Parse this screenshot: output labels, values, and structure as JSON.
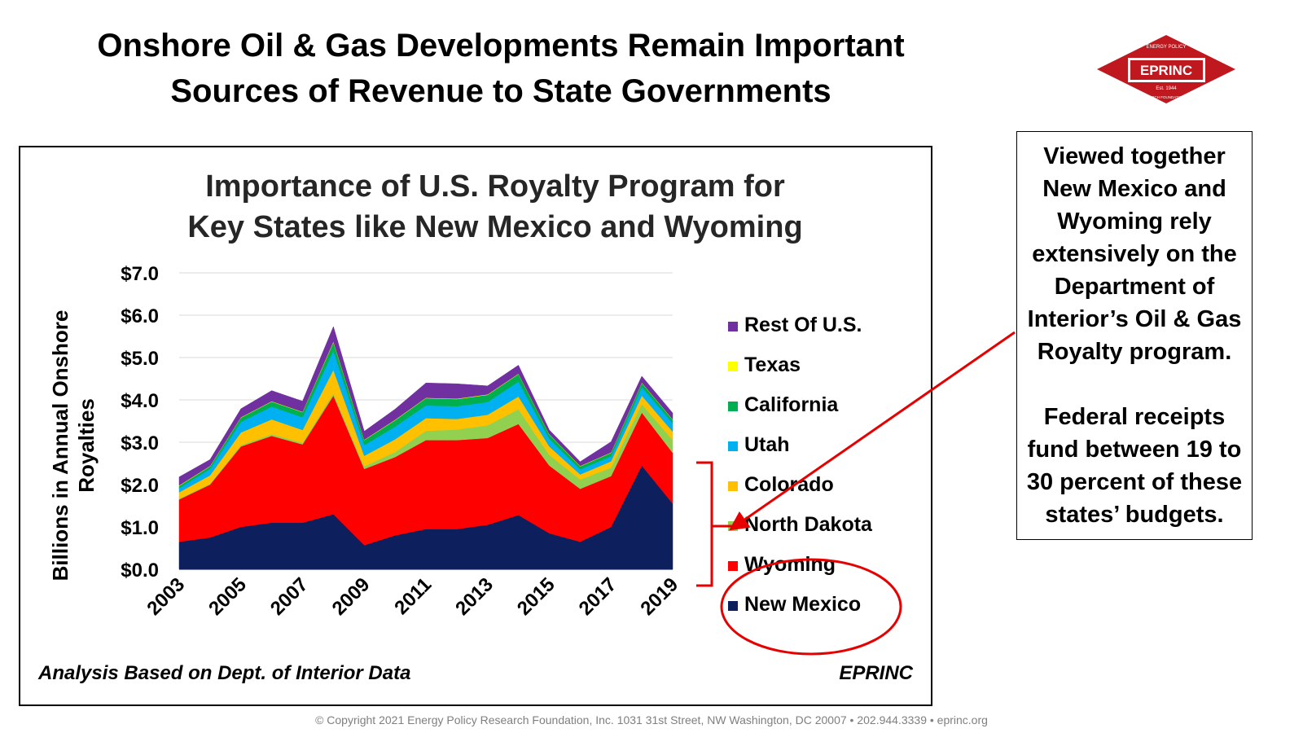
{
  "slide": {
    "title_line1": "Onshore Oil & Gas Developments Remain Important",
    "title_line2": "Sources of Revenue to State Governments",
    "footer": "© Copyright 2021 Energy Policy Research Foundation, Inc. 1031 31st Street, NW Washington, DC 20007 • 202.944.3339 • eprinc.org"
  },
  "logo": {
    "name": "EPRINC",
    "est": "Est. 1944",
    "text_top": "ENERGY POLICY",
    "text_bottom": "RESEARCH FOUNDATION INC.",
    "color": "#c0181f"
  },
  "note": {
    "paragraph1": "Viewed together New Mexico and Wyoming rely extensively on the Department of Interior’s Oil & Gas Royalty program.",
    "paragraph2": "Federal receipts fund between 19 to 30 percent of these states’ budgets."
  },
  "chart_data": {
    "type": "area",
    "stacked": true,
    "title_line1": "Importance of U.S. Royalty Program for",
    "title_line2": "Key States like New Mexico and Wyoming",
    "ylabel_line1": "Billions in Annual Onshore",
    "ylabel_line2": "Royalties",
    "source_note": "Analysis Based on Dept. of Interior Data",
    "brand": "EPRINC",
    "ylim": [
      0,
      7
    ],
    "yticks": [
      "$0.0",
      "$1.0",
      "$2.0",
      "$3.0",
      "$4.0",
      "$5.0",
      "$6.0",
      "$7.0"
    ],
    "ytick_values": [
      0,
      1,
      2,
      3,
      4,
      5,
      6,
      7
    ],
    "xtick_labels": [
      "2003",
      "2005",
      "2007",
      "2009",
      "2011",
      "2013",
      "2015",
      "2017",
      "2019"
    ],
    "x": [
      2003,
      2004,
      2005,
      2006,
      2007,
      2008,
      2009,
      2010,
      2011,
      2012,
      2013,
      2014,
      2015,
      2016,
      2017,
      2018,
      2019
    ],
    "grid": "horizontal",
    "legend_position": "right",
    "series": [
      {
        "name": "New Mexico",
        "color": "#0d1f5c",
        "values": [
          0.65,
          0.75,
          1.0,
          1.1,
          1.1,
          1.3,
          0.57,
          0.8,
          0.95,
          0.95,
          1.05,
          1.28,
          0.85,
          0.65,
          1.0,
          2.45,
          1.55
        ]
      },
      {
        "name": "Wyoming",
        "color": "#ff0000",
        "values": [
          1.0,
          1.25,
          1.9,
          2.05,
          1.85,
          2.8,
          1.8,
          1.85,
          2.1,
          2.1,
          2.05,
          2.15,
          1.6,
          1.25,
          1.2,
          1.25,
          1.2
        ]
      },
      {
        "name": "North Dakota",
        "color": "#92d050",
        "values": [
          0.02,
          0.02,
          0.03,
          0.04,
          0.04,
          0.06,
          0.06,
          0.12,
          0.22,
          0.25,
          0.3,
          0.35,
          0.25,
          0.22,
          0.2,
          0.2,
          0.3
        ]
      },
      {
        "name": "Colorado",
        "color": "#ffc000",
        "values": [
          0.15,
          0.2,
          0.3,
          0.35,
          0.3,
          0.55,
          0.25,
          0.3,
          0.3,
          0.25,
          0.25,
          0.3,
          0.2,
          0.12,
          0.15,
          0.2,
          0.2
        ]
      },
      {
        "name": "Utah",
        "color": "#00b0f0",
        "values": [
          0.1,
          0.15,
          0.25,
          0.3,
          0.3,
          0.45,
          0.25,
          0.3,
          0.3,
          0.3,
          0.3,
          0.35,
          0.18,
          0.12,
          0.12,
          0.2,
          0.2
        ]
      },
      {
        "name": "California",
        "color": "#00b050",
        "values": [
          0.05,
          0.06,
          0.1,
          0.12,
          0.12,
          0.2,
          0.12,
          0.15,
          0.17,
          0.17,
          0.17,
          0.18,
          0.1,
          0.07,
          0.08,
          0.1,
          0.08
        ]
      },
      {
        "name": "Texas",
        "color": "#ffff00",
        "values": [
          0.01,
          0.01,
          0.01,
          0.01,
          0.01,
          0.02,
          0.01,
          0.01,
          0.01,
          0.01,
          0.01,
          0.01,
          0.01,
          0.01,
          0.01,
          0.01,
          0.01
        ]
      },
      {
        "name": "Rest Of U.S.",
        "color": "#7030a0",
        "values": [
          0.2,
          0.15,
          0.2,
          0.25,
          0.25,
          0.35,
          0.2,
          0.25,
          0.35,
          0.35,
          0.2,
          0.2,
          0.1,
          0.1,
          0.25,
          0.15,
          0.15
        ]
      }
    ],
    "legend_order": [
      "Rest Of U.S.",
      "Texas",
      "California",
      "Utah",
      "Colorado",
      "North Dakota",
      "Wyoming",
      "New Mexico"
    ]
  }
}
